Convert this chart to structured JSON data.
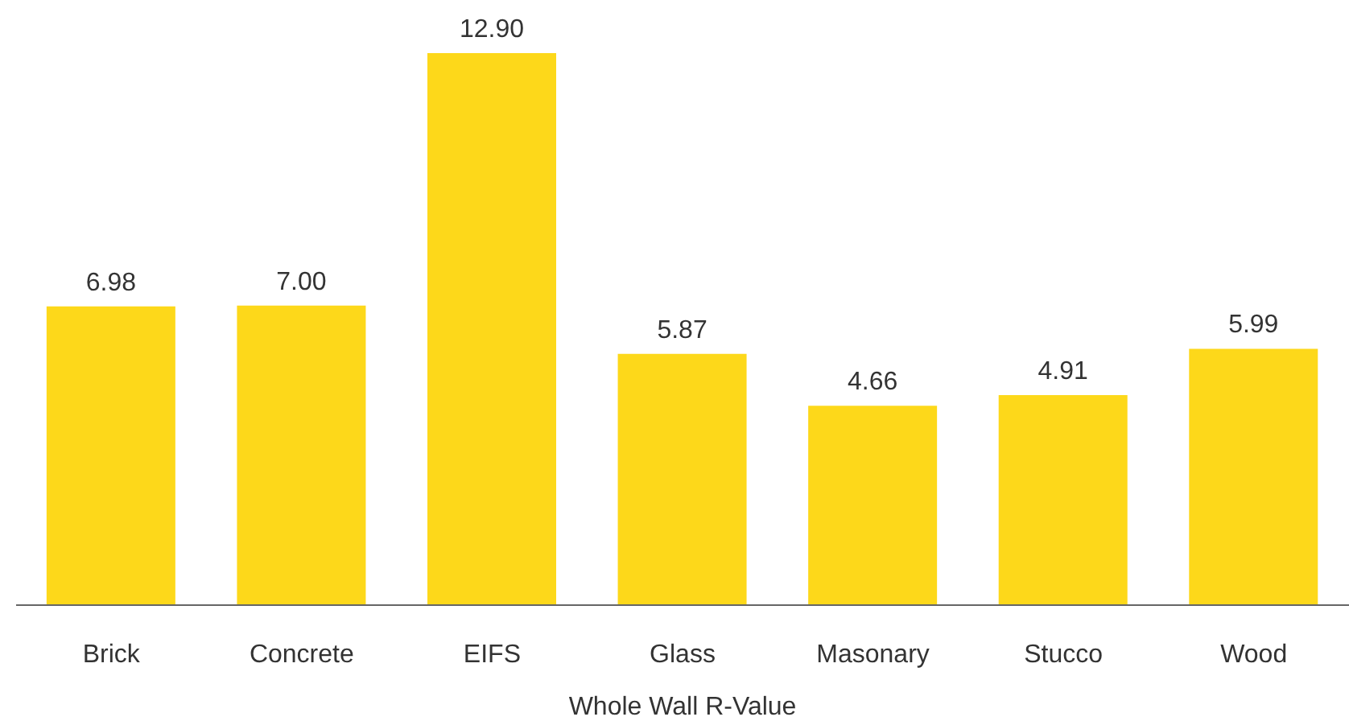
{
  "chart_data": {
    "type": "bar",
    "xlabel": "Whole Wall R-Value",
    "categories": [
      "Brick",
      "Concrete",
      "EIFS",
      "Glass",
      "Masonary",
      "Stucco",
      "Wood"
    ],
    "values": [
      6.98,
      7.0,
      12.9,
      5.87,
      4.66,
      4.91,
      5.99
    ],
    "value_labels": [
      "6.98",
      "7.00",
      "12.90",
      "5.87",
      "4.66",
      "4.91",
      "5.99"
    ],
    "color": "#fdd81a",
    "grid": false,
    "legend": false
  }
}
